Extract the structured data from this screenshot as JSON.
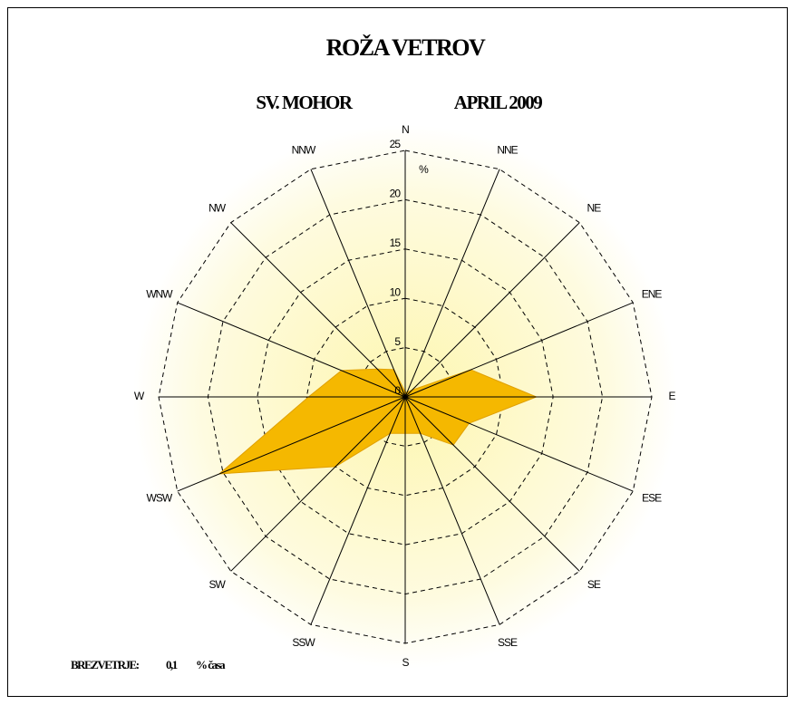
{
  "chart_data": {
    "type": "radar",
    "title": "ROŽA VETROV",
    "station": "SV. MOHOR",
    "period": "APRIL 2009",
    "unit": "%",
    "categories": [
      "N",
      "NNE",
      "NE",
      "ENE",
      "E",
      "ESE",
      "SE",
      "SSE",
      "S",
      "SSW",
      "SW",
      "WSW",
      "W",
      "WNW",
      "NW",
      "NNW"
    ],
    "values": [
      0.5,
      0.5,
      1,
      7.2,
      13.3,
      7,
      6.9,
      4,
      3.7,
      4,
      10,
      20.4,
      9.8,
      7,
      4,
      3
    ],
    "color": "#f5b800",
    "rlim": [
      0,
      25
    ],
    "rticks": [
      0,
      5,
      10,
      15,
      20,
      25
    ],
    "calm_text": "BREZVETRJE:",
    "calm_value": "0,1",
    "calm_unit": "% časa"
  }
}
